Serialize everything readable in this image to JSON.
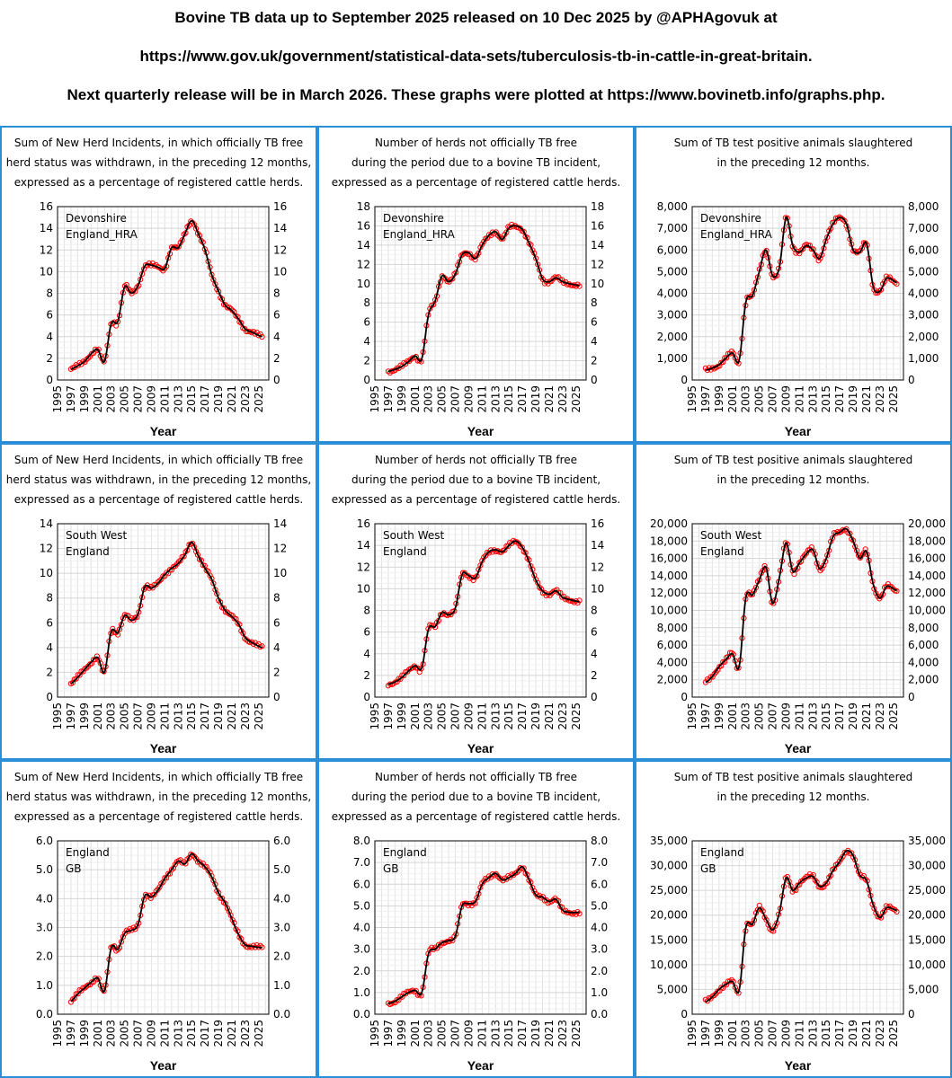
{
  "header": {
    "line1": "Bovine TB data up to September 2025 released on 10 Dec 2025 by @APHAgovuk at",
    "line2": "https://www.gov.uk/government/statistical-data-sets/tuberculosis-tb-in-cattle-in-great-britain.",
    "line3": "Next quarterly release will be in March 2026. These graphs were plotted at https://www.bovinetb.info/graphs.php."
  },
  "colors": {
    "panel_border": "#2b8fd8",
    "marker": "#ff0000",
    "trend_line": "#000000",
    "grid": "#dddddd"
  },
  "chart_data": [
    {
      "type": "scatter",
      "title_lines": [
        "Sum of New Herd Incidents, in which officially TB free",
        "herd status was withdrawn, in the preceding 12 months,",
        "expressed as a percentage of registered cattle herds."
      ],
      "legend": [
        "Devonshire",
        "England_HRA"
      ],
      "xlabel": "Year",
      "xlim": [
        1995,
        2026.5
      ],
      "ylim": [
        0,
        16
      ],
      "yticks": [
        0,
        2,
        4,
        6,
        8,
        10,
        12,
        14,
        16
      ],
      "ydec": 0,
      "series": [
        {
          "x": [
            1997,
            1998,
            1999,
            2000,
            2001,
            2002,
            2003,
            2004,
            2005,
            2006,
            2007,
            2008,
            2009,
            2010,
            2011,
            2012,
            2013,
            2014,
            2015,
            2016,
            2017,
            2018,
            2019,
            2020,
            2021,
            2022,
            2023,
            2024,
            2025.5
          ],
          "values": [
            1.0,
            1.3,
            1.7,
            2.4,
            2.8,
            1.7,
            5.2,
            5.4,
            8.6,
            8.0,
            8.7,
            10.5,
            10.6,
            10.4,
            10.3,
            12.2,
            12.2,
            13.5,
            14.7,
            13.5,
            12.0,
            9.7,
            8.2,
            6.9,
            6.4,
            5.6,
            4.7,
            4.4,
            4.0
          ]
        }
      ]
    },
    {
      "type": "scatter",
      "title_lines": [
        "Number of herds not officially TB free",
        "during the period due to a bovine TB incident,",
        "expressed as a percentage of registered cattle herds."
      ],
      "legend": [
        "Devonshire",
        "England_HRA"
      ],
      "xlabel": "Year",
      "xlim": [
        1995,
        2026.5
      ],
      "ylim": [
        0,
        18
      ],
      "yticks": [
        0,
        2,
        4,
        6,
        8,
        10,
        12,
        14,
        16,
        18
      ],
      "ydec": 0,
      "series": [
        {
          "x": [
            1997,
            1998,
            1999,
            2000,
            2001,
            2002,
            2003,
            2004,
            2005,
            2006,
            2007,
            2008,
            2009,
            2010,
            2011,
            2012,
            2013,
            2014,
            2015,
            2016,
            2017,
            2018,
            2019,
            2020,
            2021,
            2022,
            2023,
            2024,
            2025.5
          ],
          "values": [
            0.9,
            1.1,
            1.4,
            1.9,
            2.5,
            2.2,
            6.8,
            8.2,
            10.8,
            10.2,
            11.0,
            13.0,
            13.2,
            12.6,
            14.0,
            15.0,
            15.4,
            14.6,
            15.8,
            16.0,
            15.6,
            14.2,
            12.6,
            10.5,
            10.2,
            10.6,
            10.2,
            10.0,
            9.8
          ]
        }
      ]
    },
    {
      "type": "scatter",
      "title_lines": [
        "Sum of TB test positive animals slaughtered",
        "in the preceding 12 months."
      ],
      "legend": [
        "Devonshire",
        "England_HRA"
      ],
      "xlabel": "Year",
      "xlim": [
        1995,
        2026.5
      ],
      "ylim": [
        0,
        8000
      ],
      "yticks": [
        0,
        1000,
        2000,
        3000,
        4000,
        5000,
        6000,
        7000,
        8000
      ],
      "ydec": 0,
      "series": [
        {
          "x": [
            1997,
            1998,
            1999,
            2000,
            2001,
            2002,
            2003,
            2004,
            2005,
            2006,
            2007,
            2008,
            2009,
            2010,
            2011,
            2012,
            2013,
            2014,
            2015,
            2016,
            2017,
            2018,
            2019,
            2020,
            2021,
            2022,
            2023,
            2024,
            2025.5
          ],
          "values": [
            450,
            550,
            700,
            1000,
            1250,
            900,
            3600,
            3900,
            5000,
            6000,
            4800,
            5200,
            7500,
            6200,
            5900,
            6200,
            6000,
            5600,
            6500,
            7200,
            7500,
            7200,
            6000,
            5900,
            6300,
            4300,
            4100,
            4700,
            4500
          ]
        }
      ]
    },
    {
      "type": "scatter",
      "title_lines": [
        "Sum of New Herd Incidents, in which officially TB free",
        "herd status was withdrawn, in the preceding 12 months,",
        "expressed as a percentage of registered cattle herds."
      ],
      "legend": [
        "South West",
        "England"
      ],
      "xlabel": "Year",
      "xlim": [
        1995,
        2026.5
      ],
      "ylim": [
        0,
        14
      ],
      "yticks": [
        0,
        2,
        4,
        6,
        8,
        10,
        12,
        14
      ],
      "ydec": 0,
      "series": [
        {
          "x": [
            1997,
            1998,
            1999,
            2000,
            2001,
            2002,
            2003,
            2004,
            2005,
            2006,
            2007,
            2008,
            2009,
            2010,
            2011,
            2012,
            2013,
            2014,
            2015,
            2016,
            2017,
            2018,
            2019,
            2020,
            2021,
            2022,
            2023,
            2024,
            2025.5
          ],
          "values": [
            1.1,
            1.6,
            2.2,
            2.8,
            3.2,
            2.0,
            5.3,
            5.2,
            6.6,
            6.2,
            6.7,
            8.9,
            8.8,
            9.2,
            9.9,
            10.4,
            10.8,
            11.5,
            12.5,
            11.4,
            10.4,
            9.5,
            8.0,
            7.0,
            6.5,
            5.9,
            4.8,
            4.4,
            4.0
          ]
        }
      ]
    },
    {
      "type": "scatter",
      "title_lines": [
        "Number of herds not officially TB free",
        "during the period due to a bovine TB incident,",
        "expressed as a percentage of registered cattle herds."
      ],
      "legend": [
        "South West",
        "England"
      ],
      "xlabel": "Year",
      "xlim": [
        1995,
        2026.5
      ],
      "ylim": [
        0,
        16
      ],
      "yticks": [
        0,
        2,
        4,
        6,
        8,
        10,
        12,
        14,
        16
      ],
      "ydec": 0,
      "series": [
        {
          "x": [
            1997,
            1998,
            1999,
            2000,
            2001,
            2002,
            2003,
            2004,
            2005,
            2006,
            2007,
            2008,
            2009,
            2010,
            2011,
            2012,
            2013,
            2014,
            2015,
            2016,
            2017,
            2018,
            2019,
            2020,
            2021,
            2022,
            2023,
            2024,
            2025.5
          ],
          "values": [
            1.2,
            1.4,
            1.8,
            2.4,
            2.9,
            2.7,
            6.3,
            6.5,
            7.8,
            7.6,
            8.2,
            11.3,
            11.2,
            11.0,
            12.5,
            13.4,
            13.6,
            13.4,
            14.0,
            14.4,
            13.8,
            12.5,
            10.8,
            9.8,
            9.5,
            9.8,
            9.2,
            9.0,
            8.8
          ]
        }
      ]
    },
    {
      "type": "scatter",
      "title_lines": [
        "Sum of TB test positive animals slaughtered",
        "in the preceding 12 months."
      ],
      "legend": [
        "South West",
        "England"
      ],
      "xlabel": "Year",
      "xlim": [
        1995,
        2026.5
      ],
      "ylim": [
        0,
        20000
      ],
      "yticks": [
        0,
        2000,
        4000,
        6000,
        8000,
        10000,
        12000,
        14000,
        16000,
        18000,
        20000
      ],
      "ydec": 0,
      "series": [
        {
          "x": [
            1997,
            1998,
            1999,
            2000,
            2001,
            2002,
            2003,
            2004,
            2005,
            2006,
            2007,
            2008,
            2009,
            2010,
            2011,
            2012,
            2013,
            2014,
            2015,
            2016,
            2017,
            2018,
            2019,
            2020,
            2021,
            2022,
            2023,
            2024,
            2025.5
          ],
          "values": [
            1700,
            2400,
            3500,
            4300,
            5000,
            3500,
            11500,
            11800,
            13500,
            15000,
            10800,
            13800,
            17800,
            14500,
            15500,
            16500,
            17000,
            14800,
            16000,
            18500,
            19000,
            19400,
            18000,
            16000,
            16800,
            13000,
            11400,
            12800,
            12300
          ]
        }
      ]
    },
    {
      "type": "scatter",
      "title_lines": [
        "Sum of New Herd Incidents, in which officially TB free",
        "herd status was withdrawn, in the preceding 12 months,",
        "expressed as a percentage of registered cattle herds."
      ],
      "legend": [
        "England",
        "GB"
      ],
      "xlabel": "Year",
      "xlim": [
        1995,
        2026.5
      ],
      "ylim": [
        0,
        6
      ],
      "yticks": [
        0,
        1,
        2,
        3,
        4,
        5,
        6
      ],
      "ydec": 1,
      "series": [
        {
          "x": [
            1997,
            1998,
            1999,
            2000,
            2001,
            2002,
            2003,
            2004,
            2005,
            2006,
            2007,
            2008,
            2009,
            2010,
            2011,
            2012,
            2013,
            2014,
            2015,
            2016,
            2017,
            2018,
            2019,
            2020,
            2021,
            2022,
            2023,
            2024,
            2025.5
          ],
          "values": [
            0.45,
            0.7,
            0.9,
            1.1,
            1.25,
            0.8,
            2.3,
            2.25,
            2.8,
            2.9,
            3.1,
            4.1,
            4.05,
            4.3,
            4.7,
            5.0,
            5.3,
            5.2,
            5.55,
            5.3,
            5.1,
            4.75,
            4.2,
            3.85,
            3.3,
            2.75,
            2.4,
            2.35,
            2.3
          ]
        }
      ]
    },
    {
      "type": "scatter",
      "title_lines": [
        "Number of herds not officially TB free",
        "during the period due to a bovine TB incident,",
        "expressed as a percentage of registered cattle herds."
      ],
      "legend": [
        "England",
        "GB"
      ],
      "xlabel": "Year",
      "xlim": [
        1995,
        2026.5
      ],
      "ylim": [
        0,
        8
      ],
      "yticks": [
        0,
        1,
        2,
        3,
        4,
        5,
        6,
        7,
        8
      ],
      "ydec": 1,
      "series": [
        {
          "x": [
            1997,
            1998,
            1999,
            2000,
            2001,
            2002,
            2003,
            2004,
            2005,
            2006,
            2007,
            2008,
            2009,
            2010,
            2011,
            2012,
            2013,
            2014,
            2015,
            2016,
            2017,
            2018,
            2019,
            2020,
            2021,
            2022,
            2023,
            2024,
            2025.5
          ],
          "values": [
            0.5,
            0.6,
            0.8,
            1.0,
            1.1,
            1.0,
            2.8,
            3.0,
            3.3,
            3.4,
            3.6,
            5.0,
            5.1,
            5.2,
            6.0,
            6.3,
            6.5,
            6.2,
            6.3,
            6.5,
            6.8,
            6.2,
            5.5,
            5.4,
            5.2,
            5.3,
            4.8,
            4.7,
            4.7
          ]
        }
      ]
    },
    {
      "type": "scatter",
      "title_lines": [
        "Sum of TB test positive animals slaughtered",
        "in the preceding 12 months."
      ],
      "legend": [
        "England",
        "GB"
      ],
      "xlabel": "Year",
      "xlim": [
        1995,
        2026.5
      ],
      "ylim": [
        0,
        35000
      ],
      "yticks": [
        0,
        5000,
        10000,
        15000,
        20000,
        25000,
        30000,
        35000
      ],
      "ydec": 0,
      "series": [
        {
          "x": [
            1997,
            1998,
            1999,
            2000,
            2001,
            2002,
            2003,
            2004,
            2005,
            2006,
            2007,
            2008,
            2009,
            2010,
            2011,
            2012,
            2013,
            2014,
            2015,
            2016,
            2017,
            2018,
            2019,
            2020,
            2021,
            2022,
            2023,
            2024,
            2025.5
          ],
          "values": [
            2500,
            3500,
            5000,
            6000,
            6600,
            4800,
            17500,
            18200,
            21500,
            19200,
            17000,
            20500,
            27500,
            25000,
            26500,
            27500,
            27800,
            25800,
            26500,
            29000,
            30800,
            33000,
            32000,
            28000,
            27000,
            22000,
            19500,
            21500,
            21000
          ]
        }
      ]
    }
  ],
  "panels": [
    {
      "line1": "Sum of New Herd Incidents, in which officially TB free",
      "line2": "herd status was withdrawn, in the preceding 12 months,",
      "line3": "expressed as a percentage of registered cattle herds.",
      "leg1": "Devonshire",
      "leg2": "England_HRA",
      "xlabel": "Year"
    },
    {
      "line1": "Number of herds not officially TB free",
      "line2": "during the period due to a bovine TB incident,",
      "line3": "expressed as a percentage of registered cattle herds.",
      "leg1": "Devonshire",
      "leg2": "England_HRA",
      "xlabel": "Year"
    },
    {
      "line1": "Sum of TB test positive animals slaughtered",
      "line2": "in the preceding 12 months.",
      "line3": "",
      "leg1": "Devonshire",
      "leg2": "England_HRA",
      "xlabel": "Year"
    },
    {
      "line1": "Sum of New Herd Incidents, in which officially TB free",
      "line2": "herd status was withdrawn, in the preceding 12 months,",
      "line3": "expressed as a percentage of registered cattle herds.",
      "leg1": "South West",
      "leg2": "England",
      "xlabel": "Year"
    },
    {
      "line1": "Number of herds not officially TB free",
      "line2": "during the period due to a bovine TB incident,",
      "line3": "expressed as a percentage of registered cattle herds.",
      "leg1": "South West",
      "leg2": "England",
      "xlabel": "Year"
    },
    {
      "line1": "Sum of TB test positive animals slaughtered",
      "line2": "in the preceding 12 months.",
      "line3": "",
      "leg1": "South West",
      "leg2": "England",
      "xlabel": "Year"
    },
    {
      "line1": "Sum of New Herd Incidents, in which officially TB free",
      "line2": "herd status was withdrawn, in the preceding 12 months,",
      "line3": "expressed as a percentage of registered cattle herds.",
      "leg1": "England",
      "leg2": "GB",
      "xlabel": "Year"
    },
    {
      "line1": "Number of herds not officially TB free",
      "line2": "during the period due to a bovine TB incident,",
      "line3": "expressed as a percentage of registered cattle herds.",
      "leg1": "England",
      "leg2": "GB",
      "xlabel": "Year"
    },
    {
      "line1": "Sum of TB test positive animals slaughtered",
      "line2": "in the preceding 12 months.",
      "line3": "",
      "leg1": "England",
      "leg2": "GB",
      "xlabel": "Year"
    }
  ]
}
